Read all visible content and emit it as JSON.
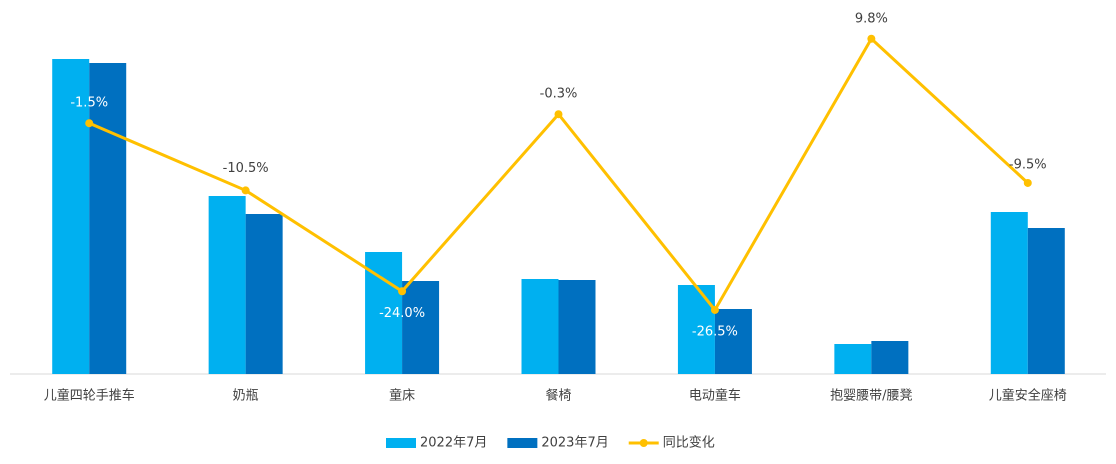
{
  "chart_data": {
    "type": "bar-line",
    "categories": [
      "儿童四轮手推车",
      "奶瓶",
      "童床",
      "餐椅",
      "电动童车",
      "抱婴腰带/腰凳",
      "儿童安全座椅"
    ],
    "series": [
      {
        "name": "2022年7月",
        "color": "#00b0f0",
        "values": [
          315,
          178,
          122,
          95,
          89,
          30,
          162
        ]
      },
      {
        "name": "2023年7月",
        "color": "#0070c0",
        "values": [
          311,
          160,
          93,
          94,
          65,
          33,
          146
        ]
      },
      {
        "name": "同比变化",
        "color": "#ffc000",
        "type": "line",
        "axis": "y2",
        "values": [
          -1.5,
          -10.5,
          -24.0,
          -0.3,
          -26.5,
          9.8,
          -9.5
        ],
        "value_labels": [
          "-1.5%",
          "-10.5%",
          "-24.0%",
          "-0.3%",
          "-26.5%",
          "9.8%",
          "-9.5%"
        ]
      }
    ],
    "ylim": [
      0,
      364
    ],
    "y2lim": [
      -35.07,
      13.65
    ],
    "legend": "bottom"
  }
}
